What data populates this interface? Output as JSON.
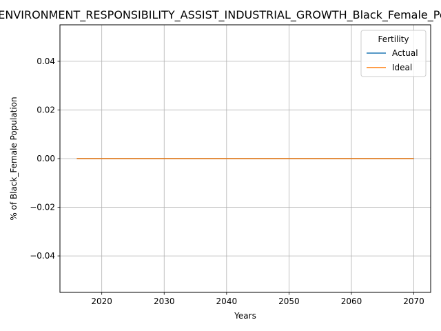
{
  "chart_data": {
    "type": "line",
    "title": "ENVIRONMENT_RESPONSIBILITY_ASSIST_INDUSTRIAL_GROWTH_Black_Female_Population",
    "xlabel": "Years",
    "ylabel": "% of Black_Female Population",
    "xlim": [
      2013.3,
      2072.7
    ],
    "ylim": [
      -0.055,
      0.055
    ],
    "x_ticks": [
      2020,
      2030,
      2040,
      2050,
      2060,
      2070
    ],
    "y_ticks": [
      -0.04,
      -0.02,
      0.0,
      0.02,
      0.04
    ],
    "x_tick_labels": [
      "2020",
      "2030",
      "2040",
      "2050",
      "2060",
      "2070"
    ],
    "y_tick_labels": [
      "−0.04",
      "−0.02",
      "0.00",
      "0.02",
      "0.04"
    ],
    "grid": true,
    "legend": {
      "title": "Fertility",
      "placement": "top-right"
    },
    "series": [
      {
        "name": "Actual",
        "color": "#1f77b4",
        "x": [
          2016,
          2020,
          2025,
          2030,
          2035,
          2040,
          2045,
          2050,
          2055,
          2060,
          2065,
          2070
        ],
        "y": [
          0,
          0,
          0,
          0,
          0,
          0,
          0,
          0,
          0,
          0,
          0,
          0
        ]
      },
      {
        "name": "Ideal",
        "color": "#ff7f0e",
        "x": [
          2016,
          2020,
          2025,
          2030,
          2035,
          2040,
          2045,
          2050,
          2055,
          2060,
          2065,
          2070
        ],
        "y": [
          0,
          0,
          0,
          0,
          0,
          0,
          0,
          0,
          0,
          0,
          0,
          0
        ]
      }
    ]
  }
}
